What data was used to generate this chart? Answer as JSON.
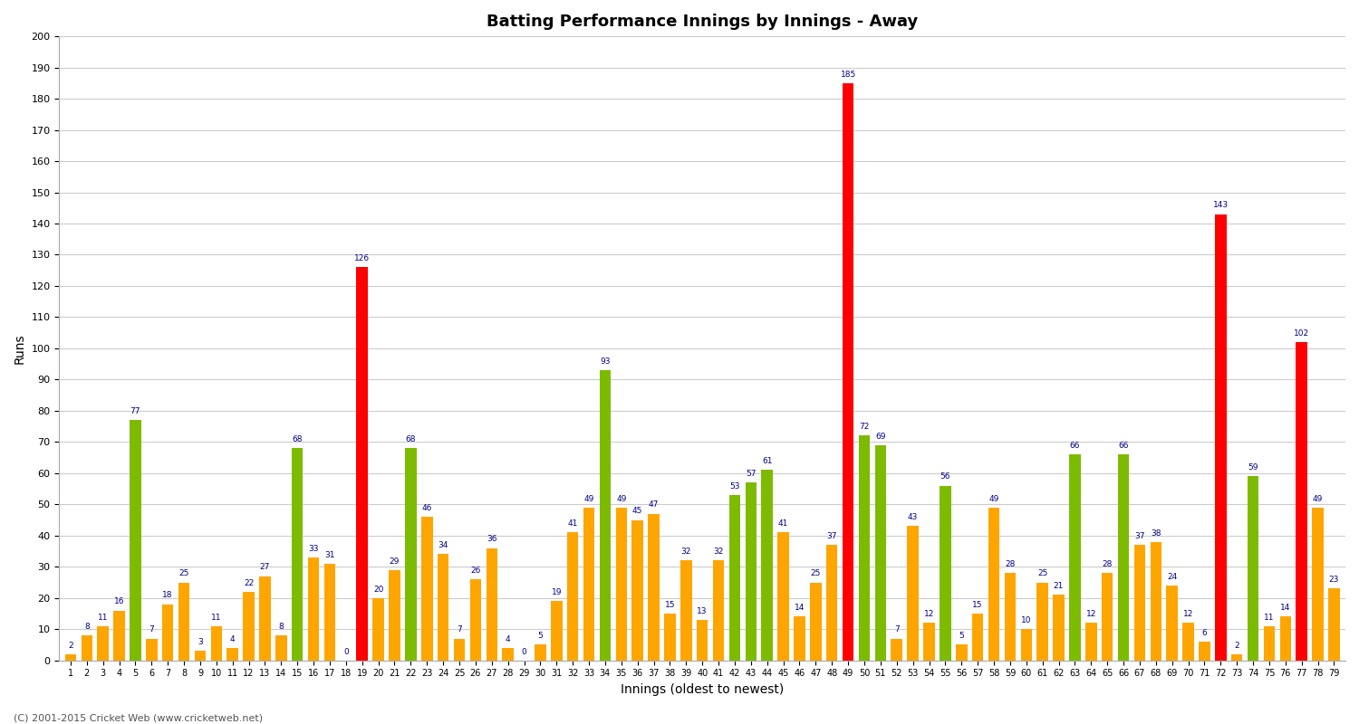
{
  "title": "Batting Performance Innings by Innings - Away",
  "xlabel": "Innings (oldest to newest)",
  "ylabel": "Runs",
  "background_color": "#ffffff",
  "grid_color": "#cccccc",
  "ylim": [
    0,
    200
  ],
  "yticks": [
    0,
    10,
    20,
    30,
    40,
    50,
    60,
    70,
    80,
    90,
    100,
    110,
    120,
    130,
    140,
    150,
    160,
    170,
    180,
    190,
    200
  ],
  "scores": [
    2,
    8,
    11,
    16,
    77,
    7,
    18,
    25,
    3,
    11,
    4,
    22,
    27,
    8,
    68,
    33,
    31,
    0,
    126,
    20,
    29,
    68,
    46,
    34,
    7,
    26,
    36,
    4,
    0,
    5,
    19,
    41,
    49,
    93,
    49,
    45,
    47,
    15,
    32,
    13,
    32,
    53,
    57,
    61,
    41,
    14,
    25,
    37,
    185,
    72,
    69,
    7,
    43,
    12,
    56,
    5,
    15,
    49,
    28,
    10,
    25,
    21,
    66,
    12,
    28,
    66,
    37,
    38,
    24,
    12,
    6,
    143,
    2,
    59,
    11,
    14,
    102,
    49,
    23
  ],
  "is_century": [
    false,
    false,
    false,
    false,
    false,
    false,
    false,
    false,
    false,
    false,
    false,
    false,
    false,
    false,
    false,
    false,
    false,
    false,
    true,
    false,
    false,
    false,
    false,
    false,
    false,
    false,
    false,
    false,
    false,
    false,
    false,
    false,
    false,
    false,
    false,
    false,
    false,
    false,
    false,
    false,
    false,
    false,
    false,
    false,
    false,
    false,
    false,
    false,
    true,
    false,
    false,
    false,
    false,
    false,
    false,
    false,
    false,
    false,
    false,
    false,
    false,
    false,
    false,
    false,
    false,
    false,
    false,
    false,
    false,
    false,
    false,
    true,
    false,
    false,
    false,
    false,
    true,
    false,
    false
  ],
  "is_fifty": [
    false,
    false,
    false,
    false,
    true,
    false,
    false,
    false,
    false,
    false,
    false,
    false,
    false,
    false,
    true,
    false,
    false,
    false,
    false,
    false,
    false,
    true,
    false,
    false,
    false,
    false,
    false,
    false,
    false,
    false,
    false,
    false,
    false,
    true,
    false,
    false,
    false,
    false,
    false,
    false,
    false,
    true,
    true,
    true,
    false,
    false,
    false,
    false,
    false,
    true,
    true,
    false,
    false,
    false,
    true,
    false,
    false,
    false,
    false,
    false,
    false,
    false,
    true,
    false,
    false,
    true,
    false,
    false,
    false,
    false,
    false,
    false,
    false,
    true,
    false,
    false,
    false,
    false,
    false
  ],
  "bar_color_normal": "#ffa500",
  "bar_color_fifty": "#7cbb00",
  "bar_color_century": "#ff0000",
  "label_color": "#00008b",
  "footer": "(C) 2001-2015 Cricket Web (www.cricketweb.net)"
}
